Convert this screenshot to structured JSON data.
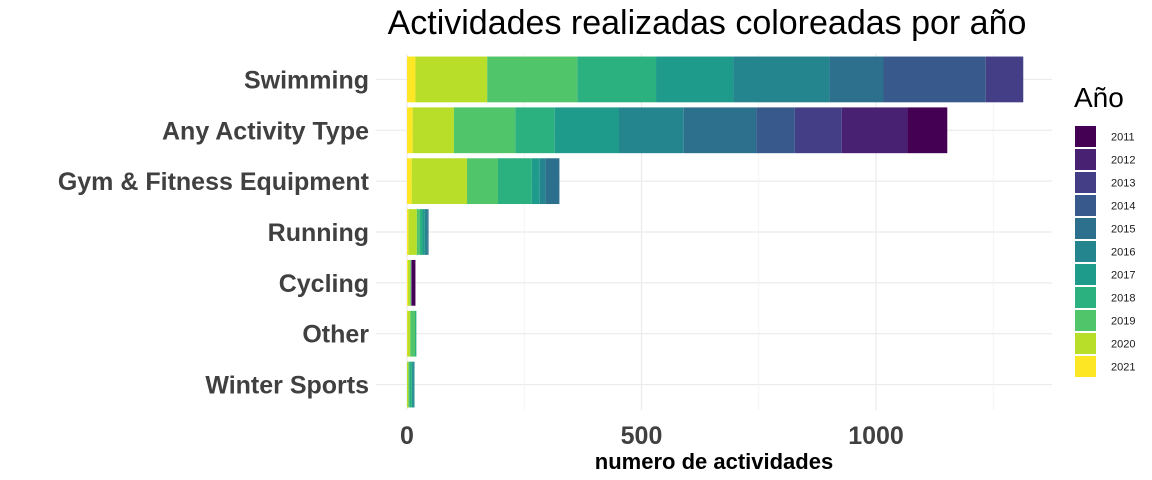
{
  "chart_data": {
    "type": "bar",
    "orientation": "horizontal",
    "stacked": true,
    "title": "Actividades realizadas coloreadas por año",
    "xlabel": "numero de actividades",
    "ylabel": "",
    "xlim": [
      0,
      1370
    ],
    "xticks": [
      0,
      500,
      1000
    ],
    "xtick_labels": [
      "0",
      "500",
      "1000"
    ],
    "grid": true,
    "legend": {
      "title": "Año",
      "position": "right"
    },
    "categories": [
      "Swimming",
      "Any Activity Type",
      "Gym & Fitness Equipment",
      "Running",
      "Cycling",
      "Other",
      "Winter Sports"
    ],
    "stack_order": [
      "2021",
      "2020",
      "2019",
      "2018",
      "2017",
      "2016",
      "2015",
      "2014",
      "2013",
      "2012",
      "2011"
    ],
    "series": [
      {
        "name": "2011",
        "color": "#440154",
        "values": [
          0,
          85,
          0,
          0,
          8,
          0,
          0
        ]
      },
      {
        "name": "2012",
        "color": "#482173",
        "values": [
          0,
          140,
          0,
          0,
          1,
          0,
          0
        ]
      },
      {
        "name": "2013",
        "color": "#433E85",
        "values": [
          80,
          100,
          0,
          0,
          0,
          0,
          0
        ]
      },
      {
        "name": "2014",
        "color": "#38598C",
        "values": [
          218,
          82,
          0,
          0,
          0,
          0,
          0
        ]
      },
      {
        "name": "2015",
        "color": "#2D708E",
        "values": [
          115,
          155,
          30,
          3,
          0,
          0,
          0
        ]
      },
      {
        "name": "2016",
        "color": "#25858E",
        "values": [
          205,
          138,
          12,
          5,
          0,
          0,
          3
        ]
      },
      {
        "name": "2017",
        "color": "#1E9B8A",
        "values": [
          165,
          137,
          17,
          5,
          0,
          0,
          3
        ]
      },
      {
        "name": "2018",
        "color": "#2BB07F",
        "values": [
          168,
          84,
          72,
          6,
          0,
          3,
          5
        ]
      },
      {
        "name": "2019",
        "color": "#51C56A",
        "values": [
          192,
          131,
          66,
          6,
          2,
          10,
          2
        ]
      },
      {
        "name": "2020",
        "color": "#B8DE29",
        "values": [
          153,
          88,
          118,
          18,
          5,
          6,
          3
        ]
      },
      {
        "name": "2021",
        "color": "#FDE725",
        "values": [
          18,
          12,
          10,
          3,
          2,
          1,
          0
        ]
      }
    ]
  }
}
